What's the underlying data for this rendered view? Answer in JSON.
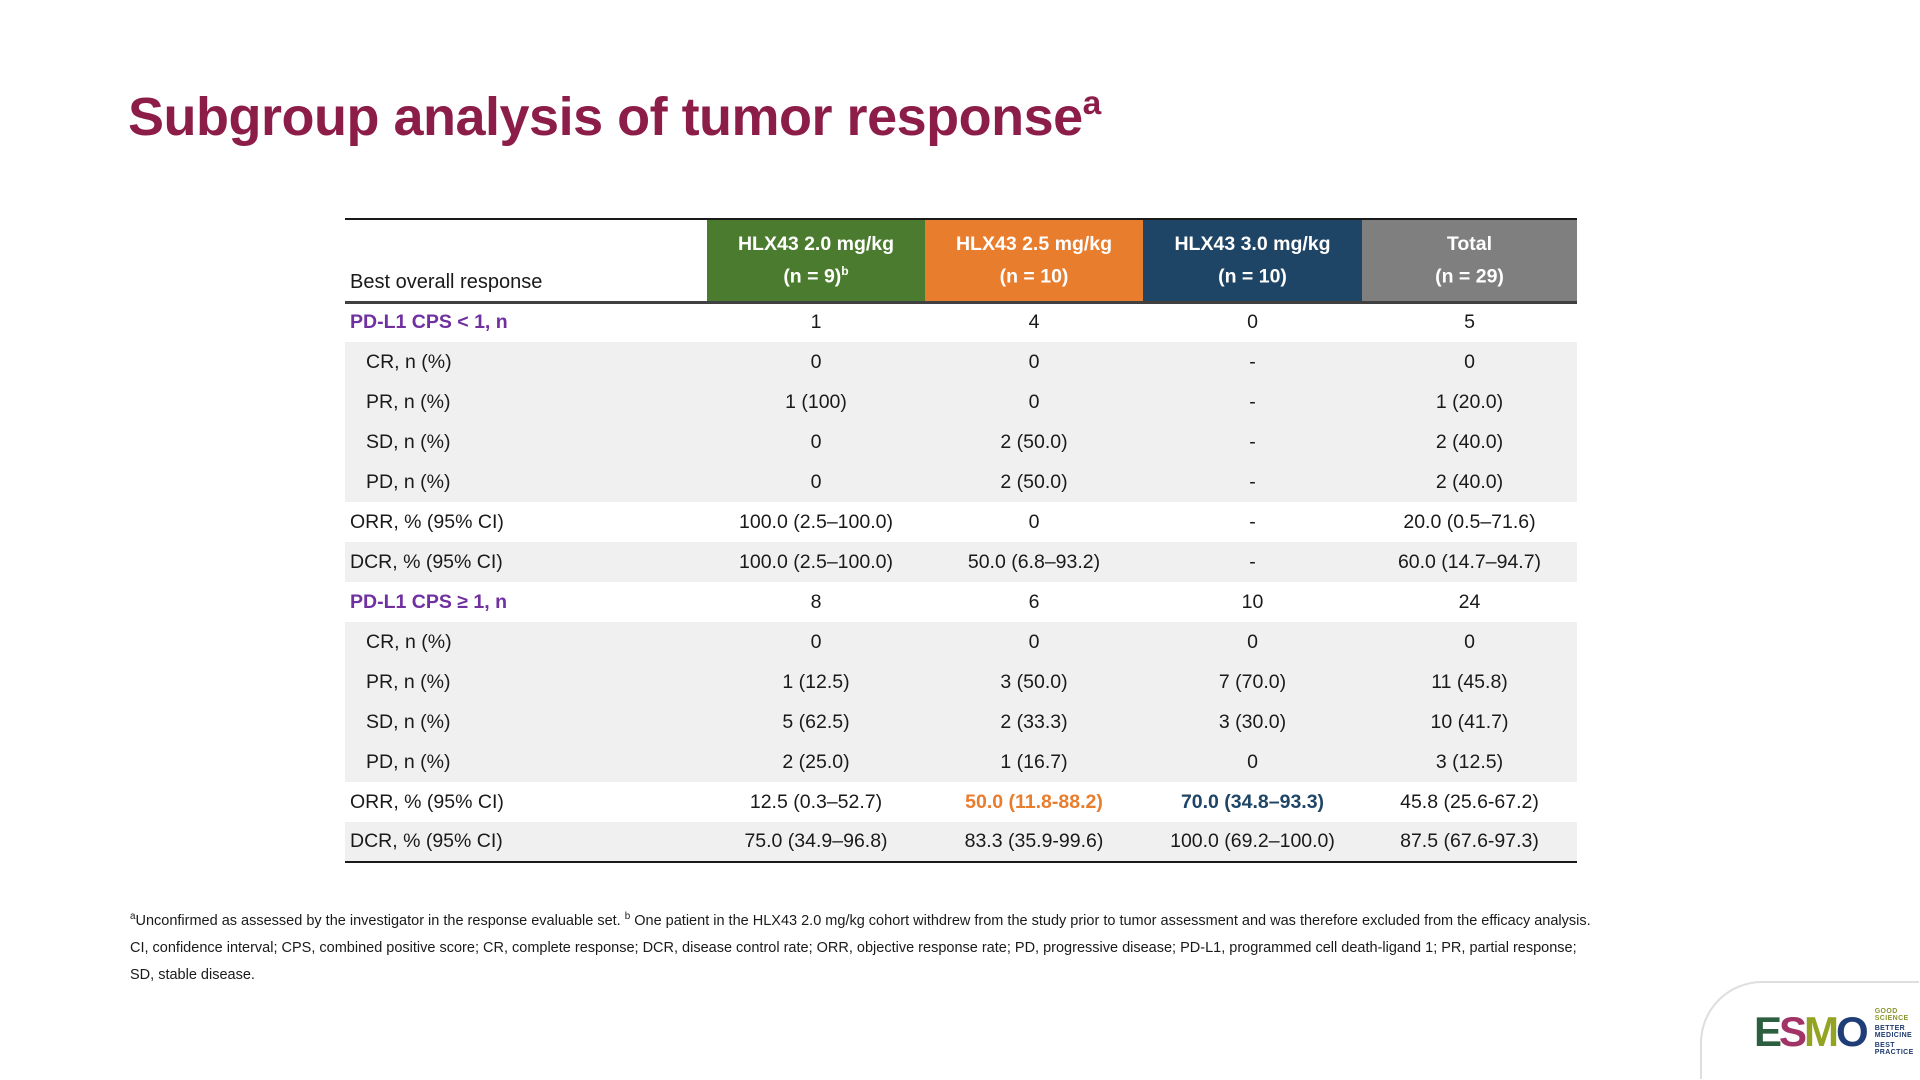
{
  "slide": {
    "title": "Subgroup analysis of tumor response",
    "title_superscript": "a",
    "title_color": "#8C1D49"
  },
  "table": {
    "row_header_label": "Best overall response",
    "columns": [
      {
        "line1": "HLX43 2.0 mg/kg",
        "line2": "(n = 9)",
        "line2_sup": "b",
        "color": "#4B7B2F"
      },
      {
        "line1": "HLX43 2.5 mg/kg",
        "line2": "(n = 10)",
        "line2_sup": "",
        "color": "#E87D2E"
      },
      {
        "line1": "HLX43 3.0 mg/kg",
        "line2": "(n = 10)",
        "line2_sup": "",
        "color": "#1F4566"
      },
      {
        "line1": "Total",
        "line2": "(n = 29)",
        "line2_sup": "",
        "color": "#7F7F7F"
      }
    ],
    "rows": [
      {
        "label": "PD-L1 CPS < 1, n",
        "type": "section",
        "values": [
          "1",
          "4",
          "0",
          "5"
        ]
      },
      {
        "label": "CR, n (%)",
        "type": "sub",
        "values": [
          "0",
          "0",
          "-",
          "0"
        ]
      },
      {
        "label": "PR, n (%)",
        "type": "sub",
        "values": [
          "1 (100)",
          "0",
          "-",
          "1 (20.0)"
        ]
      },
      {
        "label": "SD, n (%)",
        "type": "sub",
        "values": [
          "0",
          "2 (50.0)",
          "-",
          "2 (40.0)"
        ]
      },
      {
        "label": "PD, n (%)",
        "type": "sub",
        "values": [
          "0",
          "2 (50.0)",
          "-",
          "2 (40.0)"
        ]
      },
      {
        "label": "ORR, % (95% CI)",
        "type": "stat-white",
        "values": [
          "100.0 (2.5–100.0)",
          "0",
          "-",
          "20.0 (0.5–71.6)"
        ]
      },
      {
        "label": "DCR, % (95% CI)",
        "type": "stat-gray",
        "values": [
          "100.0 (2.5–100.0)",
          "50.0 (6.8–93.2)",
          "-",
          "60.0 (14.7–94.7)"
        ]
      },
      {
        "label": "PD-L1 CPS ≥ 1, n",
        "type": "section",
        "values": [
          "8",
          "6",
          "10",
          "24"
        ]
      },
      {
        "label": "CR, n (%)",
        "type": "sub",
        "values": [
          "0",
          "0",
          "0",
          "0"
        ]
      },
      {
        "label": "PR, n (%)",
        "type": "sub",
        "values": [
          "1 (12.5)",
          "3 (50.0)",
          "7 (70.0)",
          "11 (45.8)"
        ]
      },
      {
        "label": "SD, n (%)",
        "type": "sub",
        "values": [
          "5 (62.5)",
          "2 (33.3)",
          "3 (30.0)",
          "10 (41.7)"
        ]
      },
      {
        "label": "PD, n (%)",
        "type": "sub",
        "values": [
          "2 (25.0)",
          "1 (16.7)",
          "0",
          "3 (12.5)"
        ]
      },
      {
        "label": "ORR, % (95% CI)",
        "type": "stat-white",
        "values": [
          "12.5 (0.3–52.7)",
          "50.0 (11.8-88.2)",
          "70.0 (34.8–93.3)",
          "45.8 (25.6-67.2)"
        ],
        "highlight_colors": {
          "col1": "#E87D2E",
          "col2": "#1F4566"
        }
      },
      {
        "label": "DCR, % (95% CI)",
        "type": "stat-gray",
        "values": [
          "75.0 (34.9–96.8)",
          "83.3 (35.9-99.6)",
          "100.0 (69.2–100.0)",
          "87.5 (67.6-97.3)"
        ]
      }
    ],
    "section_label_color": "#7030A0",
    "stripe_color": "#F0F0F0"
  },
  "footnotes": {
    "fn1_sup1": "a",
    "fn1_text1": "Unconfirmed as assessed by the investigator in the response evaluable set. ",
    "fn1_sup2": "b",
    "fn1_text2": " One patient in the HLX43 2.0 mg/kg cohort withdrew from the study prior to tumor assessment and was therefore excluded from the efficacy analysis.",
    "fn2_text": "CI, confidence interval; CPS, combined positive score; CR, complete response; DCR, disease control rate; ORR, objective response rate; PD, progressive disease; PD-L1, programmed cell death-ligand 1; PR, partial response; SD, stable disease."
  },
  "logo": {
    "letters": [
      {
        "ch": "E",
        "color": "#2B5F3F"
      },
      {
        "ch": "S",
        "color": "#A23366"
      },
      {
        "ch": "M",
        "color": "#93A324"
      },
      {
        "ch": "O",
        "color": "#1F3E77"
      }
    ],
    "taglines": [
      "GOOD SCIENCE",
      "BETTER MEDICINE",
      "BEST PRACTICE"
    ]
  }
}
